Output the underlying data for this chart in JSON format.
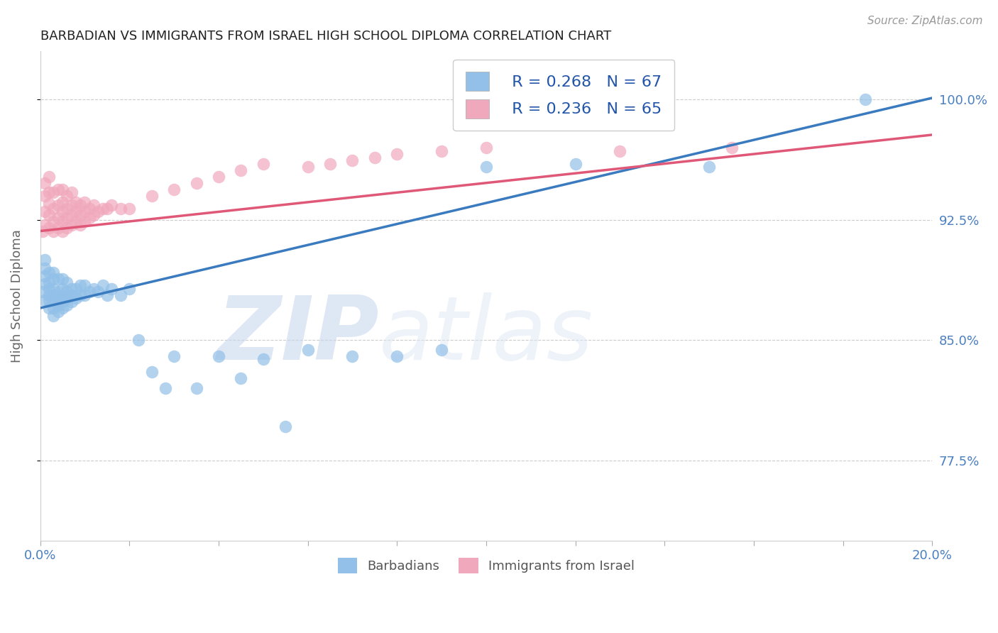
{
  "title": "BARBADIAN VS IMMIGRANTS FROM ISRAEL HIGH SCHOOL DIPLOMA CORRELATION CHART",
  "source": "Source: ZipAtlas.com",
  "ylabel": "High School Diploma",
  "ytick_labels": [
    "77.5%",
    "85.0%",
    "92.5%",
    "100.0%"
  ],
  "ytick_values": [
    0.775,
    0.85,
    0.925,
    1.0
  ],
  "xmin": 0.0,
  "xmax": 0.2,
  "ymin": 0.725,
  "ymax": 1.03,
  "legend_entry1": "R = 0.268   N = 67",
  "legend_entry2": "R = 0.236   N = 65",
  "blue_color": "#92c0e8",
  "pink_color": "#f0a8bc",
  "blue_line_color": "#3a7abf",
  "pink_line_color": "#e05878",
  "label_color": "#4a7fc1",
  "watermark_zip": "ZIP",
  "watermark_atlas": "atlas",
  "legend_label1": "Barbadians",
  "legend_label2": "Immigrants from Israel",
  "blue_regression": [
    0.0,
    0.2,
    0.87,
    1.001
  ],
  "pink_regression": [
    0.0,
    0.2,
    0.918,
    0.978
  ],
  "barbadians_x": [
    0.0005,
    0.001,
    0.001,
    0.001,
    0.001,
    0.001,
    0.002,
    0.002,
    0.002,
    0.002,
    0.002,
    0.002,
    0.003,
    0.003,
    0.003,
    0.003,
    0.003,
    0.003,
    0.003,
    0.004,
    0.004,
    0.004,
    0.004,
    0.004,
    0.005,
    0.005,
    0.005,
    0.005,
    0.005,
    0.006,
    0.006,
    0.006,
    0.006,
    0.007,
    0.007,
    0.007,
    0.008,
    0.008,
    0.009,
    0.009,
    0.01,
    0.01,
    0.011,
    0.012,
    0.013,
    0.014,
    0.015,
    0.016,
    0.018,
    0.02,
    0.022,
    0.025,
    0.028,
    0.03,
    0.035,
    0.04,
    0.045,
    0.05,
    0.055,
    0.06,
    0.07,
    0.08,
    0.09,
    0.1,
    0.12,
    0.15,
    0.185
  ],
  "barbadians_y": [
    0.88,
    0.875,
    0.885,
    0.89,
    0.895,
    0.9,
    0.87,
    0.875,
    0.878,
    0.882,
    0.886,
    0.892,
    0.865,
    0.87,
    0.875,
    0.878,
    0.882,
    0.888,
    0.892,
    0.868,
    0.872,
    0.876,
    0.88,
    0.888,
    0.87,
    0.874,
    0.878,
    0.882,
    0.888,
    0.872,
    0.876,
    0.88,
    0.886,
    0.874,
    0.878,
    0.882,
    0.876,
    0.882,
    0.878,
    0.884,
    0.878,
    0.884,
    0.88,
    0.882,
    0.88,
    0.884,
    0.878,
    0.882,
    0.878,
    0.882,
    0.85,
    0.83,
    0.82,
    0.84,
    0.82,
    0.84,
    0.826,
    0.838,
    0.796,
    0.844,
    0.84,
    0.84,
    0.844,
    0.958,
    0.96,
    0.958,
    1.0
  ],
  "israel_x": [
    0.0005,
    0.001,
    0.001,
    0.001,
    0.001,
    0.002,
    0.002,
    0.002,
    0.002,
    0.002,
    0.003,
    0.003,
    0.003,
    0.003,
    0.004,
    0.004,
    0.004,
    0.004,
    0.005,
    0.005,
    0.005,
    0.005,
    0.005,
    0.006,
    0.006,
    0.006,
    0.006,
    0.007,
    0.007,
    0.007,
    0.007,
    0.008,
    0.008,
    0.008,
    0.009,
    0.009,
    0.009,
    0.01,
    0.01,
    0.01,
    0.011,
    0.011,
    0.012,
    0.012,
    0.013,
    0.014,
    0.015,
    0.016,
    0.018,
    0.02,
    0.025,
    0.03,
    0.035,
    0.04,
    0.045,
    0.05,
    0.06,
    0.065,
    0.07,
    0.075,
    0.08,
    0.09,
    0.1,
    0.13,
    0.155
  ],
  "israel_y": [
    0.918,
    0.922,
    0.93,
    0.94,
    0.948,
    0.92,
    0.928,
    0.935,
    0.942,
    0.952,
    0.918,
    0.924,
    0.932,
    0.942,
    0.92,
    0.926,
    0.934,
    0.944,
    0.918,
    0.924,
    0.93,
    0.936,
    0.944,
    0.92,
    0.926,
    0.932,
    0.94,
    0.922,
    0.928,
    0.934,
    0.942,
    0.924,
    0.93,
    0.936,
    0.922,
    0.928,
    0.934,
    0.924,
    0.93,
    0.936,
    0.926,
    0.932,
    0.928,
    0.934,
    0.93,
    0.932,
    0.932,
    0.934,
    0.932,
    0.932,
    0.94,
    0.944,
    0.948,
    0.952,
    0.956,
    0.96,
    0.958,
    0.96,
    0.962,
    0.964,
    0.966,
    0.968,
    0.97,
    0.968,
    0.97
  ]
}
